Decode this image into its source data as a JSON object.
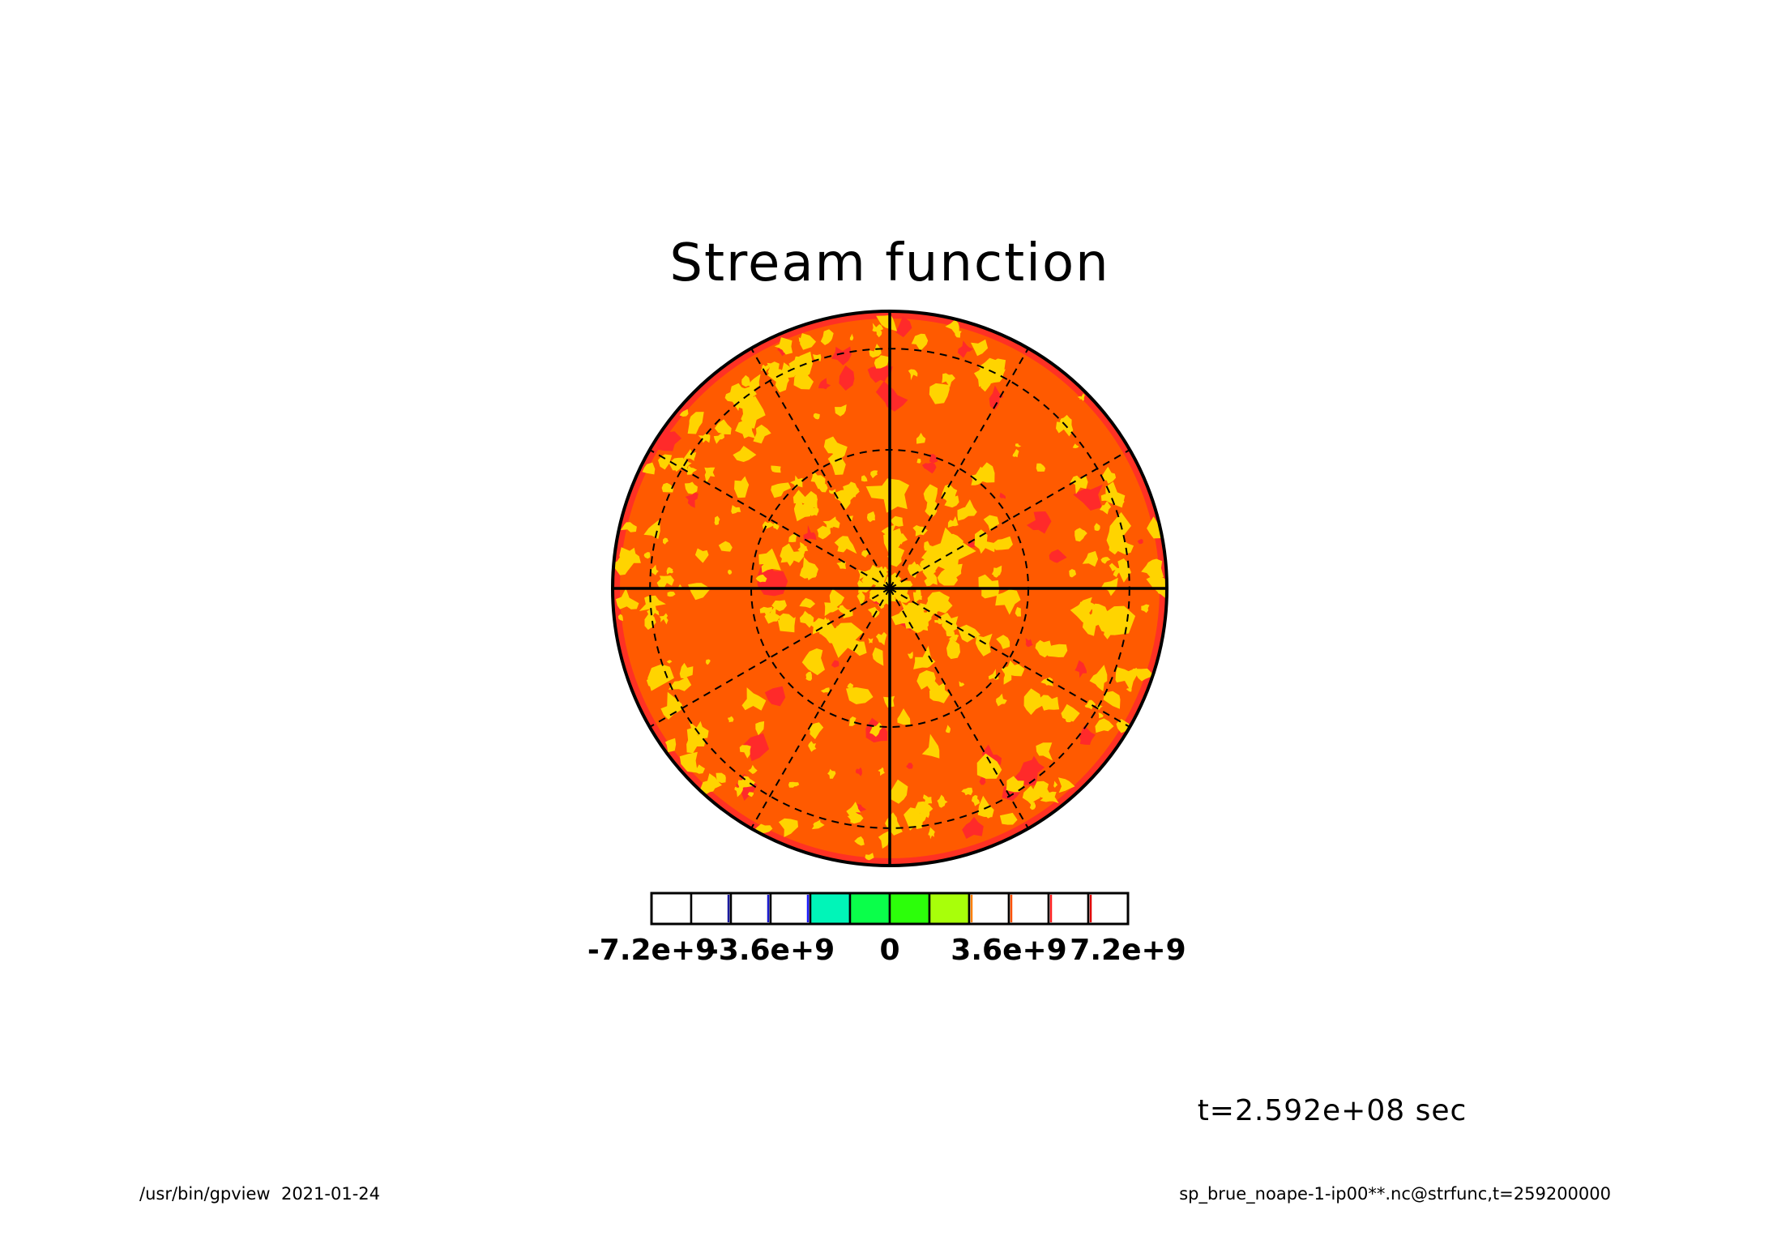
{
  "chart_data": {
    "type": "heatmap",
    "projection": "polar stereographic (orthographic disk)",
    "title": "Stream function",
    "variable": "strfunc",
    "colorbar": {
      "tick_labels": [
        "-7.2e+9",
        "-3.6e+9",
        "0",
        "3.6e+9",
        "7.2e+9"
      ],
      "tick_values": [
        -7200000000,
        -3600000000,
        0,
        3600000000,
        7200000000
      ],
      "levels": [
        -7200000000,
        -6000000000,
        -4800000000,
        -3600000000,
        -2400000000,
        -1200000000,
        0,
        1200000000,
        2400000000,
        3600000000,
        4800000000,
        6000000000,
        7200000000
      ],
      "bin_colors": [
        "#ffffff",
        "#ffffff",
        "#ffffff",
        "#ffffff",
        "#00f5b8",
        "#0aff4a",
        "#2cff0a",
        "#a8ff0a",
        "#ffffff",
        "#ffffff",
        "#ffffff",
        "#ffffff"
      ],
      "bin_edge_colors": [
        "#000000",
        "#1a1aa0",
        "#1a1ad0",
        "#1a1aff",
        "#000000",
        "#000000",
        "#000000",
        "#000000",
        "#ff8000",
        "#ff5000",
        "#ff2020",
        "#e00000"
      ]
    },
    "field_colors": {
      "dominant": "#ff5a00",
      "positive_patches": "#ffd400",
      "negative_patches": "#ff2a2a",
      "outline": "#000000"
    },
    "grid": {
      "meridians_deg": [
        0,
        30,
        60,
        90,
        120,
        150,
        180,
        210,
        240,
        270,
        300,
        330
      ],
      "solid_meridians_deg": [
        0,
        90,
        180,
        270
      ],
      "latitude_circles_count": 2,
      "latitude_style": "dashed"
    },
    "annotation_time": "t=2.592e+08 sec"
  },
  "footer": {
    "left": "/usr/bin/gpview  2021-01-24",
    "right": "sp_brue_noape-1-ip00**.nc@strfunc,t=259200000"
  },
  "colors": {
    "background": "#ffffff",
    "text": "#000000"
  }
}
